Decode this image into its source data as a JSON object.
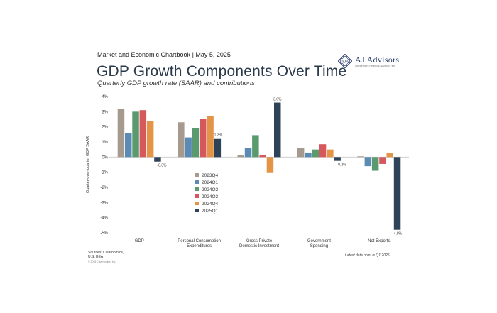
{
  "header": {
    "subheader": "Market and Economic Chartbook | May 5, 2025",
    "title": "GDP Growth Components Over Time",
    "subtitle": "Quarterly GDP growth rate (SAAR) and contributions"
  },
  "logo": {
    "name": "AJ Advisors",
    "tagline": "Independent Financial Advisory Firm"
  },
  "footer": {
    "source": "Sources: Clearnomics, U.S. BEA",
    "copyright": "© 2025 Clearnomics, Inc.",
    "note": "Latest data point is Q1 2025"
  },
  "colors": {
    "2023Q4": "#a69a8f",
    "2024Q1": "#5a8bb5",
    "2024Q2": "#5a9a6e",
    "2024Q3": "#d4585c",
    "2024Q4": "#e39446",
    "2025Q1": "#2e4358"
  },
  "chart_data": {
    "type": "bar",
    "ylabel": "Quarter-over-quarter GDP SAAR",
    "ylim": [
      -5,
      4
    ],
    "yticks": [
      "4%",
      "3%",
      "2%",
      "1%",
      "0%",
      "-1%",
      "-2%",
      "-3%",
      "-4%",
      "-5%"
    ],
    "categories": [
      "GDP",
      "Personal Consumption Expenditures",
      "Gross Private Domestic Investment",
      "Government Spending",
      "Net Exports"
    ],
    "series": [
      {
        "name": "2023Q4",
        "values": [
          3.2,
          2.3,
          0.15,
          0.6,
          0.05
        ]
      },
      {
        "name": "2024Q1",
        "values": [
          1.6,
          1.3,
          0.6,
          0.3,
          -0.6
        ]
      },
      {
        "name": "2024Q2",
        "values": [
          3.0,
          1.9,
          1.45,
          0.5,
          -0.9
        ]
      },
      {
        "name": "2024Q3",
        "values": [
          3.1,
          2.5,
          0.15,
          0.85,
          -0.45
        ]
      },
      {
        "name": "2024Q4",
        "values": [
          2.4,
          2.7,
          -1.05,
          0.5,
          0.25
        ]
      },
      {
        "name": "2025Q1",
        "values": [
          -0.3,
          1.2,
          3.6,
          -0.25,
          -4.8
        ]
      }
    ],
    "data_labels": [
      {
        "series": "2025Q1",
        "category": "GDP",
        "text": "-0.3%"
      },
      {
        "series": "2025Q1",
        "category": "Personal Consumption Expenditures",
        "text": "1.2%"
      },
      {
        "series": "2025Q1",
        "category": "Gross Private Domestic Investment",
        "text": "3.6%"
      },
      {
        "series": "2025Q1",
        "category": "Government Spending",
        "text": "-0.2%"
      },
      {
        "series": "2025Q1",
        "category": "Net Exports",
        "text": "-4.8%"
      }
    ],
    "legend_placement": "center-left, inside plot",
    "grid": false
  }
}
